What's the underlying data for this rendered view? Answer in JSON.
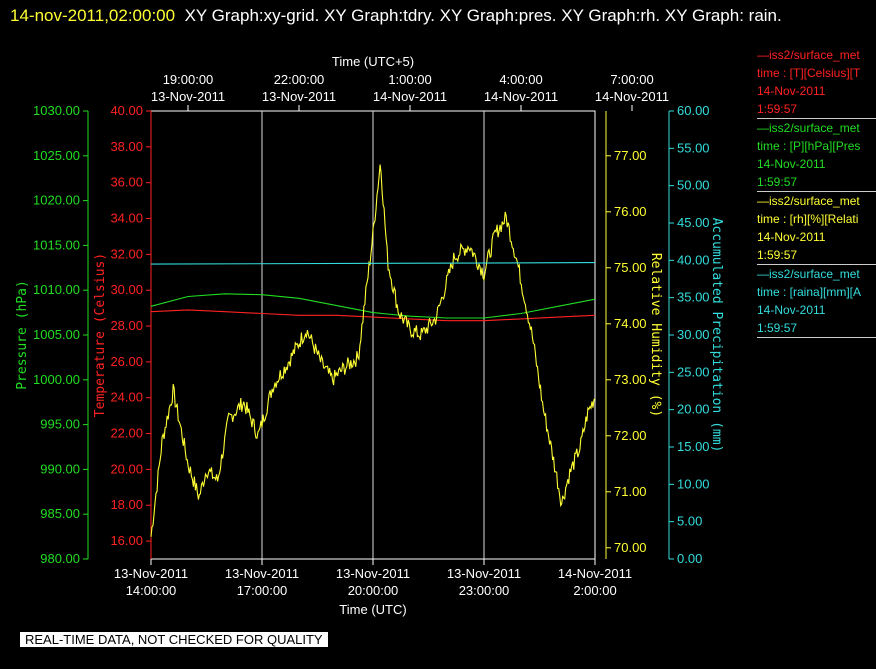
{
  "header": {
    "timestamp": "14-nov-2011,02:00:00",
    "title_text": "XY Graph:xy-grid.  XY Graph:tdry.  XY Graph:pres.  XY Graph:rh.  XY Graph: rain."
  },
  "notice": "REAL-TIME DATA, NOT CHECKED FOR QUALITY",
  "legend": [
    {
      "line1": "—iss2/surface_met",
      "line2": "time : [T][Celsius][T",
      "line3": "14-Nov-2011",
      "line4": "1:59:57",
      "color": "#ff2222"
    },
    {
      "line1": "—iss2/surface_met",
      "line2": "time : [P][hPa][Pres",
      "line3": "14-Nov-2011",
      "line4": "1:59:57",
      "color": "#22dd22"
    },
    {
      "line1": "—iss2/surface_met",
      "line2": "time : [rh][%][Relati",
      "line3": "14-Nov-2011",
      "line4": "1:59:57",
      "color": "#ffff33"
    },
    {
      "line1": "—iss2/surface_met",
      "line2": "time : [raina][mm][A",
      "line3": "14-Nov-2011",
      "line4": "1:59:57",
      "color": "#33dddd"
    }
  ],
  "chart_data": {
    "type": "line",
    "grid": true,
    "x_top_label": "Time (UTC+5)",
    "x_bottom_label": "Time (UTC)",
    "x_range_utc": [
      "13-Nov-2011 14:00:00",
      "14-Nov-2011 02:00:00"
    ],
    "top_ticks": [
      {
        "time": "19:00:00",
        "date": "13-Nov-2011"
      },
      {
        "time": "22:00:00",
        "date": "13-Nov-2011"
      },
      {
        "time": "1:00:00",
        "date": "14-Nov-2011"
      },
      {
        "time": "4:00:00",
        "date": "14-Nov-2011"
      },
      {
        "time": "7:00:00",
        "date": "14-Nov-2011"
      }
    ],
    "bottom_ticks": [
      {
        "date": "13-Nov-2011",
        "time": "14:00:00"
      },
      {
        "date": "13-Nov-2011",
        "time": "17:00:00"
      },
      {
        "date": "13-Nov-2011",
        "time": "20:00:00"
      },
      {
        "date": "13-Nov-2011",
        "time": "23:00:00"
      },
      {
        "date": "14-Nov-2011",
        "time": "2:00:00"
      }
    ],
    "axes": [
      {
        "key": "pres",
        "label": "Pressure (hPa)",
        "color": "#22dd22",
        "range": [
          980,
          1030
        ],
        "ticks": [
          "980.00",
          "985.00",
          "990.00",
          "995.00",
          "1000.00",
          "1005.00",
          "1010.00",
          "1015.00",
          "1020.00",
          "1025.00",
          "1030.00"
        ]
      },
      {
        "key": "temp",
        "label": "Temperature (Celsius)",
        "color": "#ff2222",
        "range": [
          15,
          40
        ],
        "ticks": [
          "16.00",
          "18.00",
          "20.00",
          "22.00",
          "24.00",
          "26.00",
          "28.00",
          "30.00",
          "32.00",
          "34.00",
          "36.00",
          "38.00",
          "40.00"
        ]
      },
      {
        "key": "rh",
        "label": "Relative Humidity (%)",
        "color": "#ffff33",
        "range": [
          69.8,
          77.8
        ],
        "ticks": [
          "70.00",
          "71.00",
          "72.00",
          "73.00",
          "74.00",
          "75.00",
          "76.00",
          "77.00"
        ]
      },
      {
        "key": "rain",
        "label": "Accumulated Precipitation (mm)",
        "color": "#33dddd",
        "range": [
          0,
          60
        ],
        "ticks": [
          "0.00",
          "5.00",
          "10.00",
          "15.00",
          "20.00",
          "25.00",
          "30.00",
          "35.00",
          "40.00",
          "45.00",
          "50.00",
          "55.00",
          "60.00"
        ]
      }
    ],
    "series": [
      {
        "name": "tdry",
        "axis": "temp",
        "color": "#ff2222",
        "x": [
          0,
          1,
          2,
          3,
          4,
          5,
          6,
          7,
          8,
          9,
          10,
          11,
          12
        ],
        "y": [
          28.8,
          28.9,
          28.8,
          28.7,
          28.6,
          28.6,
          28.5,
          28.4,
          28.3,
          28.3,
          28.4,
          28.5,
          28.6
        ]
      },
      {
        "name": "pres",
        "axis": "pres",
        "color": "#22dd22",
        "x": [
          0,
          1,
          2,
          3,
          4,
          5,
          6,
          7,
          8,
          9,
          10,
          11,
          12
        ],
        "y": [
          1008.2,
          1009.3,
          1009.6,
          1009.5,
          1009.1,
          1008.3,
          1007.5,
          1007.1,
          1006.9,
          1006.9,
          1007.4,
          1008.2,
          1009.0
        ]
      },
      {
        "name": "rh",
        "axis": "rh",
        "color": "#ffff33",
        "noisy": true,
        "x": [
          0,
          0.3,
          0.6,
          1,
          1.3,
          1.5,
          1.8,
          2.1,
          2.5,
          2.9,
          3.3,
          3.7,
          4.2,
          4.6,
          4.9,
          5.2,
          5.6,
          6.0,
          6.2,
          6.4,
          6.7,
          7.0,
          7.3,
          7.7,
          8.2,
          8.6,
          9.0,
          9.3,
          9.6,
          9.9,
          10.3,
          10.6,
          10.9,
          11.1,
          11.3,
          11.6,
          11.8,
          12.0
        ],
        "y": [
          70.2,
          71.9,
          72.8,
          71.5,
          70.9,
          71.4,
          71.2,
          72.3,
          72.6,
          72.0,
          72.9,
          73.3,
          73.9,
          73.3,
          73.0,
          73.2,
          73.4,
          75.6,
          76.9,
          75.1,
          74.2,
          73.9,
          73.8,
          74.1,
          75.2,
          75.4,
          74.9,
          75.6,
          75.9,
          75.1,
          73.8,
          72.5,
          71.5,
          70.8,
          71.3,
          71.8,
          72.4,
          72.7
        ]
      },
      {
        "name": "rain",
        "axis": "rain",
        "color": "#33dddd",
        "x": [
          0,
          12
        ],
        "y": [
          39.5,
          39.7
        ]
      }
    ]
  }
}
